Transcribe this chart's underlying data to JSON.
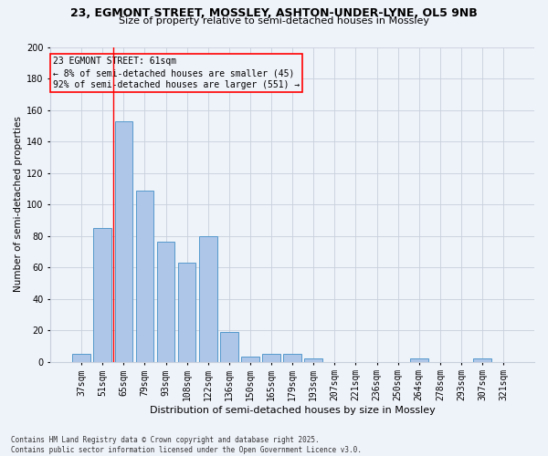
{
  "title1": "23, EGMONT STREET, MOSSLEY, ASHTON-UNDER-LYNE, OL5 9NB",
  "title2": "Size of property relative to semi-detached houses in Mossley",
  "xlabel": "Distribution of semi-detached houses by size in Mossley",
  "ylabel": "Number of semi-detached properties",
  "annotation_title": "23 EGMONT STREET: 61sqm",
  "annotation_line1": "← 8% of semi-detached houses are smaller (45)",
  "annotation_line2": "92% of semi-detached houses are larger (551) →",
  "bar_labels": [
    "37sqm",
    "51sqm",
    "65sqm",
    "79sqm",
    "93sqm",
    "108sqm",
    "122sqm",
    "136sqm",
    "150sqm",
    "165sqm",
    "179sqm",
    "193sqm",
    "207sqm",
    "221sqm",
    "236sqm",
    "250sqm",
    "264sqm",
    "278sqm",
    "293sqm",
    "307sqm",
    "321sqm"
  ],
  "bar_values": [
    5,
    85,
    153,
    109,
    76,
    63,
    80,
    19,
    3,
    5,
    5,
    2,
    0,
    0,
    0,
    0,
    2,
    0,
    0,
    2,
    0
  ],
  "bar_color": "#aec6e8",
  "bar_edge_color": "#5599cc",
  "vline_x": 1.5,
  "vline_color": "red",
  "box_color": "red",
  "background_color": "#eef2f9",
  "grid_color": "#c8d0dc",
  "footer": "Contains HM Land Registry data © Crown copyright and database right 2025.\nContains public sector information licensed under the Open Government Licence v3.0.",
  "ylim": [
    0,
    200
  ],
  "yticks": [
    0,
    20,
    40,
    60,
    80,
    100,
    120,
    140,
    160,
    180,
    200
  ],
  "title1_fontsize": 9,
  "title2_fontsize": 8,
  "xlabel_fontsize": 8,
  "ylabel_fontsize": 7.5,
  "tick_fontsize": 7,
  "annotation_fontsize": 7,
  "footer_fontsize": 5.5
}
